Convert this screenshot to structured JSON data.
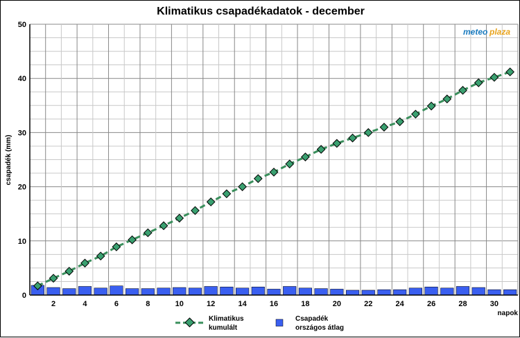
{
  "chart_data": {
    "type": "bar+line",
    "title": "Klimatikus csapadékadatok - december",
    "ylabel": "csapadék (mm)",
    "xlabel": "napok",
    "ylim": [
      0,
      50
    ],
    "yticks": [
      0,
      10,
      20,
      30,
      40,
      50
    ],
    "xticks": [
      2,
      4,
      6,
      8,
      10,
      12,
      14,
      16,
      18,
      20,
      22,
      24,
      26,
      28,
      30
    ],
    "grid": true,
    "legend_position": "bottom",
    "x": [
      1,
      2,
      3,
      4,
      5,
      6,
      7,
      8,
      9,
      10,
      11,
      12,
      13,
      14,
      15,
      16,
      17,
      18,
      19,
      20,
      21,
      22,
      23,
      24,
      25,
      26,
      27,
      28,
      29,
      30,
      31
    ],
    "series": [
      {
        "name": "Csapadék országos átlag",
        "type": "bar",
        "color": "#3a5ff0",
        "values": [
          1.8,
          1.4,
          1.2,
          1.6,
          1.3,
          1.7,
          1.2,
          1.2,
          1.3,
          1.4,
          1.3,
          1.6,
          1.5,
          1.3,
          1.5,
          1.1,
          1.6,
          1.3,
          1.2,
          1.1,
          0.9,
          0.9,
          1.0,
          1.0,
          1.3,
          1.5,
          1.3,
          1.6,
          1.4,
          1.0,
          1.0
        ]
      },
      {
        "name": "Klimatikus kumulált",
        "type": "line",
        "color": "#3a8f5c",
        "marker_color": "#3aa070",
        "values": [
          1.7,
          3.1,
          4.4,
          5.9,
          7.2,
          8.9,
          10.2,
          11.5,
          12.8,
          14.2,
          15.6,
          17.2,
          18.7,
          20.0,
          21.5,
          22.7,
          24.2,
          25.5,
          26.9,
          28.0,
          29.0,
          30.0,
          31.0,
          32.0,
          33.4,
          34.9,
          36.2,
          37.8,
          39.2,
          40.2,
          41.2
        ]
      }
    ],
    "legend": {
      "line_label_1": "Klimatikus",
      "line_label_2": "kumulált",
      "bar_label_1": "Csapadék",
      "bar_label_2": "országos átlag"
    },
    "logo": {
      "part1": "meteo",
      "part2": "plaza"
    }
  }
}
